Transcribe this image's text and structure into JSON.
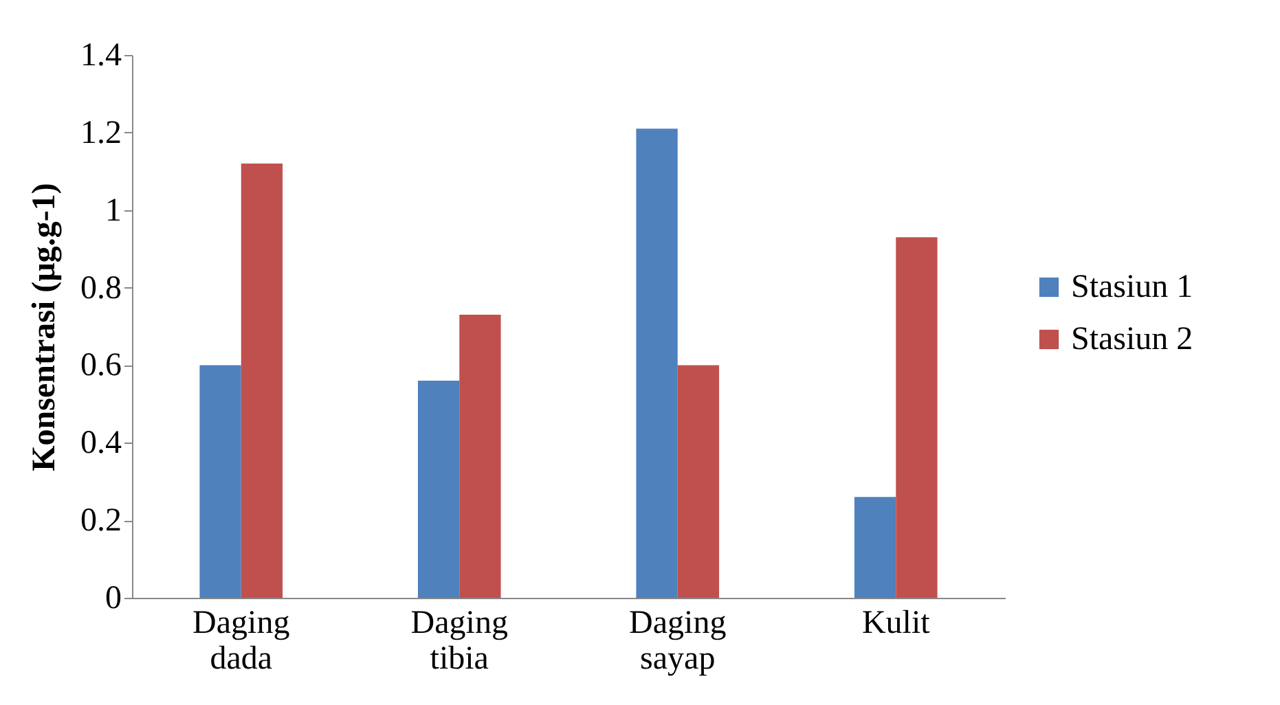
{
  "chart_data": {
    "type": "bar",
    "ylabel": "Konsentrasi (µg.g-1)",
    "categories": [
      "Daging dada",
      "Daging tibia",
      "Daging sayap",
      "Kulit"
    ],
    "series": [
      {
        "name": "Stasiun 1",
        "color": "#4f81bd",
        "values": [
          0.6,
          0.56,
          1.21,
          0.26
        ]
      },
      {
        "name": "Stasiun 2",
        "color": "#c0504d",
        "values": [
          1.12,
          0.73,
          0.6,
          0.93
        ]
      }
    ],
    "ylim": [
      0,
      1.4
    ],
    "yticks": [
      0,
      0.2,
      0.4,
      0.6,
      0.8,
      1,
      1.2,
      1.4
    ],
    "grid": false,
    "legend": "right"
  }
}
